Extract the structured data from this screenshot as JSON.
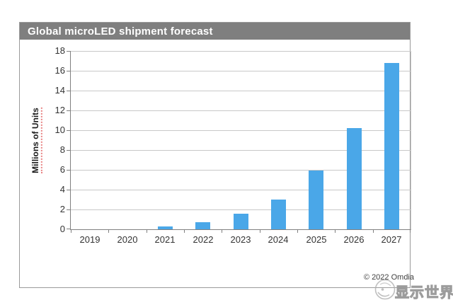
{
  "panel": {
    "header": {
      "title": "Global microLED shipment forecast",
      "bg": "#7f7f7f",
      "text_color": "#ffffff"
    },
    "border_color": "#9a9a9a"
  },
  "chart_data": {
    "type": "bar",
    "title": "Global microLED shipment forecast",
    "categories": [
      "2019",
      "2020",
      "2021",
      "2022",
      "2023",
      "2024",
      "2025",
      "2026",
      "2027"
    ],
    "values": [
      0,
      0,
      0.3,
      0.7,
      1.6,
      3.0,
      5.9,
      10.2,
      16.8
    ],
    "xlabel": "",
    "ylabel": "Millions of Units",
    "ylim": [
      0,
      18
    ],
    "ytick_step": 2,
    "grid": true,
    "legend": "none",
    "bar_color": "#4aa7e8",
    "gridline_color": "#c8c8c8",
    "axis_color": "#808080",
    "tick_label_color": "#333333"
  },
  "footer": {
    "copyright": "© 2022 Omdia"
  },
  "watermark": {
    "logo": "swirl-logo-icon",
    "text": "显示世界",
    "color": "#9c9c9c"
  }
}
